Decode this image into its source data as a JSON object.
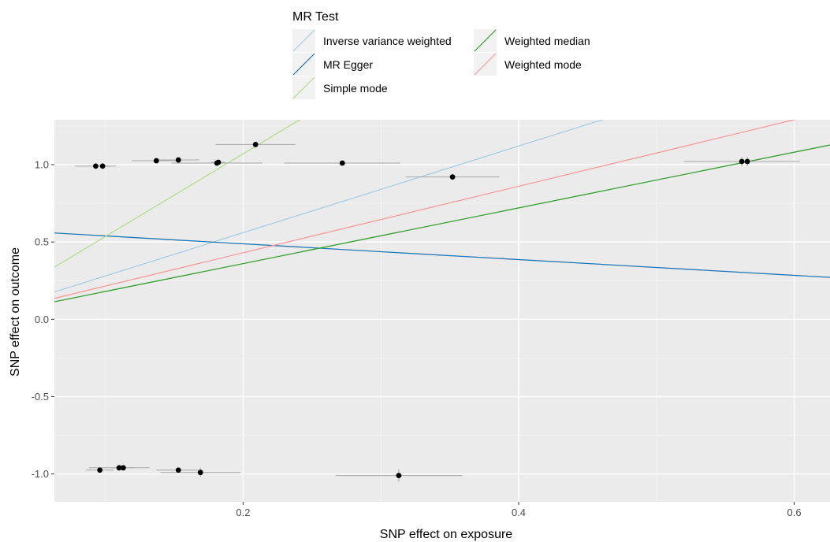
{
  "chart_data": {
    "type": "scatter",
    "title": "",
    "xlabel": "SNP effect on exposure",
    "ylabel": "SNP effect on outcome",
    "xlim": [
      0.063,
      0.626
    ],
    "ylim": [
      -1.18,
      1.29
    ],
    "x_ticks": [
      0.2,
      0.4,
      0.6
    ],
    "x_tick_labels": [
      "0.2",
      "0.4",
      "0.6"
    ],
    "y_ticks": [
      -1.0,
      -0.5,
      0.0,
      0.5,
      1.0
    ],
    "y_tick_labels": [
      "-1.0",
      "-0.5",
      "0.0",
      "0.5",
      "1.0"
    ],
    "grid": true,
    "legend": {
      "title": "MR Test",
      "position": "top",
      "entries": [
        {
          "label": "Inverse variance weighted",
          "color": "#A6CEE3"
        },
        {
          "label": "MR Egger",
          "color": "#1F78B4"
        },
        {
          "label": "Simple mode",
          "color": "#B2DF8A"
        },
        {
          "label": "Weighted median",
          "color": "#33A02C"
        },
        {
          "label": "Weighted mode",
          "color": "#FB9A99"
        }
      ]
    },
    "points": [
      {
        "x": 0.093,
        "y": 0.99,
        "xerr": 0.015,
        "yerr": 0.008
      },
      {
        "x": 0.098,
        "y": 0.99,
        "xerr": 0.005,
        "yerr": 0.008
      },
      {
        "x": 0.137,
        "y": 1.025,
        "xerr": 0.018,
        "yerr": 0.008
      },
      {
        "x": 0.153,
        "y": 1.03,
        "xerr": 0.015,
        "yerr": 0.008
      },
      {
        "x": 0.181,
        "y": 1.01,
        "xerr": 0.033,
        "yerr": 0.015
      },
      {
        "x": 0.182,
        "y": 1.015,
        "xerr": 0.005,
        "yerr": 0.015
      },
      {
        "x": 0.209,
        "y": 1.13,
        "xerr": 0.029,
        "yerr": 0.015
      },
      {
        "x": 0.272,
        "y": 1.01,
        "xerr": 0.042,
        "yerr": 0.008
      },
      {
        "x": 0.352,
        "y": 0.92,
        "xerr": 0.034,
        "yerr": 0.02
      },
      {
        "x": 0.562,
        "y": 1.02,
        "xerr": 0.042,
        "yerr": 0.03
      },
      {
        "x": 0.566,
        "y": 1.02,
        "xerr": 0.029,
        "yerr": 0.03
      },
      {
        "x": 0.096,
        "y": -0.975,
        "xerr": 0.01,
        "yerr": 0.01
      },
      {
        "x": 0.11,
        "y": -0.96,
        "xerr": 0.022,
        "yerr": 0.015
      },
      {
        "x": 0.113,
        "y": -0.96,
        "xerr": 0.008,
        "yerr": 0.015
      },
      {
        "x": 0.153,
        "y": -0.975,
        "xerr": 0.016,
        "yerr": 0.012
      },
      {
        "x": 0.169,
        "y": -0.99,
        "xerr": 0.029,
        "yerr": 0.03
      },
      {
        "x": 0.313,
        "y": -1.01,
        "xerr": 0.046,
        "yerr": 0.04
      }
    ],
    "lines": [
      {
        "name": "Inverse variance weighted",
        "intercept": 0.0,
        "slope": 2.8,
        "color": "#A6CEE3"
      },
      {
        "name": "MR Egger",
        "intercept": 0.59,
        "slope": -0.51,
        "color": "#1F78B4"
      },
      {
        "name": "Simple mode",
        "intercept": 0.0,
        "slope": 5.35,
        "color": "#B2DF8A"
      },
      {
        "name": "Weighted median",
        "intercept": 0.0,
        "slope": 1.8,
        "color": "#33A02C"
      },
      {
        "name": "Weighted mode",
        "intercept": 0.0,
        "slope": 2.15,
        "color": "#FB9A99"
      }
    ]
  }
}
